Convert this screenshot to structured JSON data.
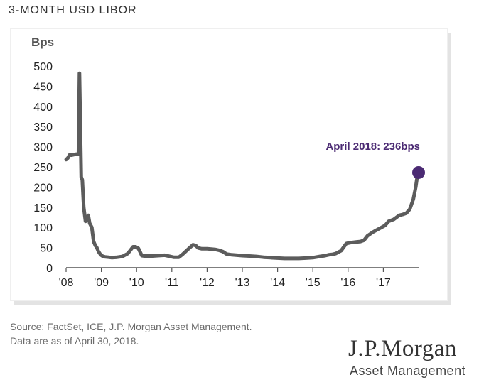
{
  "title": "3-MONTH USD LIBOR",
  "source_lines": [
    "Source: FactSet, ICE, J.P. Morgan Asset Management.",
    "Data are as of April 30, 2018."
  ],
  "logo": {
    "main": "J.P.Morgan",
    "sub": "Asset Management"
  },
  "colors": {
    "line": "#5c5c5c",
    "marker": "#4b2a73",
    "annotation": "#4b2a73"
  },
  "chart_data": {
    "type": "line",
    "title": "3-MONTH USD LIBOR",
    "ylabel": "Bps",
    "xlabel": "",
    "ylim": [
      0,
      500
    ],
    "yticks": [
      0,
      50,
      100,
      150,
      200,
      250,
      300,
      350,
      400,
      450,
      500
    ],
    "xlim": [
      2008.0,
      2018.0
    ],
    "xticks": [
      {
        "value": 2008,
        "label": "'08"
      },
      {
        "value": 2009,
        "label": "'09"
      },
      {
        "value": 2010,
        "label": "'10"
      },
      {
        "value": 2011,
        "label": "'11"
      },
      {
        "value": 2012,
        "label": "'12"
      },
      {
        "value": 2013,
        "label": "'13"
      },
      {
        "value": 2014,
        "label": "'14"
      },
      {
        "value": 2015,
        "label": "'15"
      },
      {
        "value": 2016,
        "label": "'16"
      },
      {
        "value": 2017,
        "label": "'17"
      }
    ],
    "series": [
      {
        "name": "3-Month USD LIBOR",
        "x": [
          2008.0,
          2008.05,
          2008.1,
          2008.15,
          2008.25,
          2008.35,
          2008.38,
          2008.43,
          2008.46,
          2008.5,
          2008.55,
          2008.6,
          2008.63,
          2008.67,
          2008.73,
          2008.78,
          2008.83,
          2008.87,
          2008.92,
          2008.98,
          2009.05,
          2009.1,
          2009.2,
          2009.3,
          2009.45,
          2009.6,
          2009.75,
          2009.9,
          2009.97,
          2010.05,
          2010.15,
          2010.22,
          2010.3,
          2010.45,
          2010.6,
          2010.8,
          2010.95,
          2011.05,
          2011.2,
          2011.3,
          2011.45,
          2011.6,
          2011.68,
          2011.75,
          2011.85,
          2012.0,
          2012.15,
          2012.25,
          2012.35,
          2012.45,
          2012.55,
          2012.7,
          2012.85,
          2013.0,
          2013.2,
          2013.4,
          2013.6,
          2013.8,
          2014.0,
          2014.2,
          2014.4,
          2014.6,
          2014.8,
          2015.0,
          2015.2,
          2015.35,
          2015.45,
          2015.55,
          2015.65,
          2015.8,
          2015.95,
          2016.05,
          2016.15,
          2016.25,
          2016.35,
          2016.45,
          2016.55,
          2016.7,
          2016.8,
          2016.95,
          2017.05,
          2017.15,
          2017.3,
          2017.45,
          2017.55,
          2017.65,
          2017.75,
          2017.85,
          2017.92,
          2017.96,
          2018.0
        ],
        "values": [
          268,
          272,
          280,
          279,
          281,
          282,
          482,
          225,
          218,
          150,
          115,
          120,
          130,
          110,
          100,
          65,
          55,
          50,
          40,
          32,
          28,
          27,
          26,
          25,
          26,
          28,
          35,
          52,
          52,
          48,
          30,
          29,
          29,
          29,
          30,
          31,
          28,
          26,
          26,
          33,
          45,
          57,
          55,
          49,
          47,
          47,
          46,
          45,
          43,
          40,
          34,
          32,
          31,
          30,
          29,
          28,
          26,
          25,
          24,
          23,
          23,
          23,
          24,
          25,
          28,
          30,
          32,
          33,
          35,
          42,
          60,
          62,
          63,
          64,
          65,
          68,
          79,
          88,
          93,
          100,
          105,
          115,
          120,
          130,
          132,
          135,
          145,
          170,
          200,
          225,
          236
        ]
      }
    ],
    "annotation": {
      "text": "April 2018: 236bps",
      "x": 2018.0,
      "y": 236
    }
  }
}
